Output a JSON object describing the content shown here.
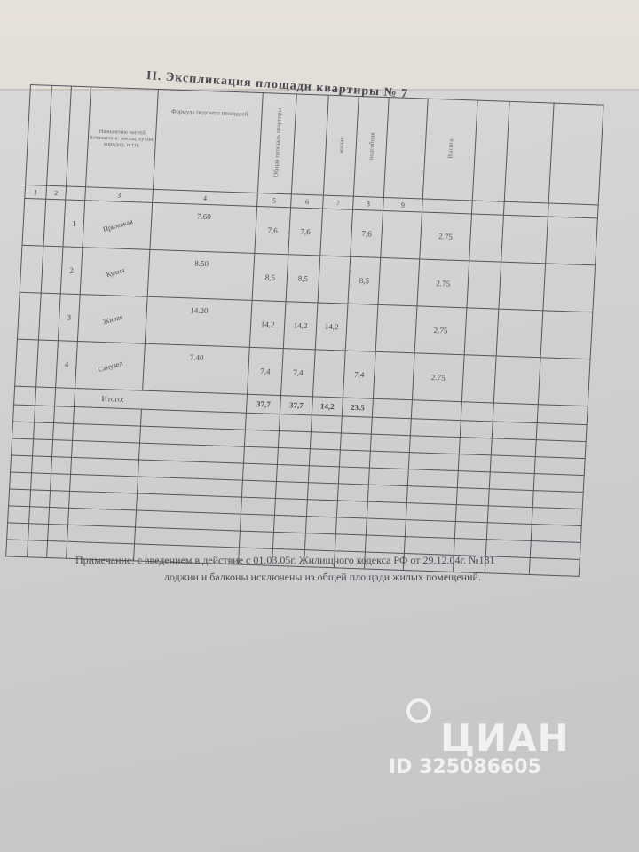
{
  "document": {
    "title": "II. Экспликация площади квартиры № 7",
    "header_formula": "Формула подсчета площадей",
    "header_purpose": "Назначение частей помещения: жилая, кухня, коридор, и т.п.",
    "header_total": "Общая площадь квартиры",
    "header_living": "жилая",
    "header_aux": "подсобная",
    "header_height": "Высота",
    "column_numbers": [
      "1",
      "2",
      "3",
      "4",
      "5",
      "6",
      "7",
      "8",
      "9"
    ],
    "rows": [
      {
        "room_no": "1",
        "name": "Прихожая",
        "formula": "7.60",
        "total": "7,6",
        "apartment": "7,6",
        "living": "",
        "aux": "7,6",
        "height": "2.75"
      },
      {
        "room_no": "2",
        "name": "Кухня",
        "formula": "8.50",
        "total": "8,5",
        "apartment": "8,5",
        "living": "",
        "aux": "8,5",
        "height": "2.75"
      },
      {
        "room_no": "3",
        "name": "Жилая",
        "formula": "14.20",
        "total": "14,2",
        "apartment": "14,2",
        "living": "14,2",
        "aux": "",
        "height": "2.75"
      },
      {
        "room_no": "4",
        "name": "Санузел",
        "formula": "7.40",
        "total": "7,4",
        "apartment": "7,4",
        "living": "",
        "aux": "7,4",
        "height": "2.75"
      }
    ],
    "totals": {
      "label": "Итого:",
      "total": "37,7",
      "apartment": "37,7",
      "living": "14,2",
      "aux": "23,5"
    }
  },
  "note": {
    "line1": "Примечание: с введением в действие с 01.03.05г. Жилищного кодекса РФ от 29.12.04г. №181",
    "line2": "лоджии и балконы исключены из общей площади жилых помещений."
  },
  "watermark": {
    "logo": "ЦИАН",
    "id": "ID 325086605"
  }
}
